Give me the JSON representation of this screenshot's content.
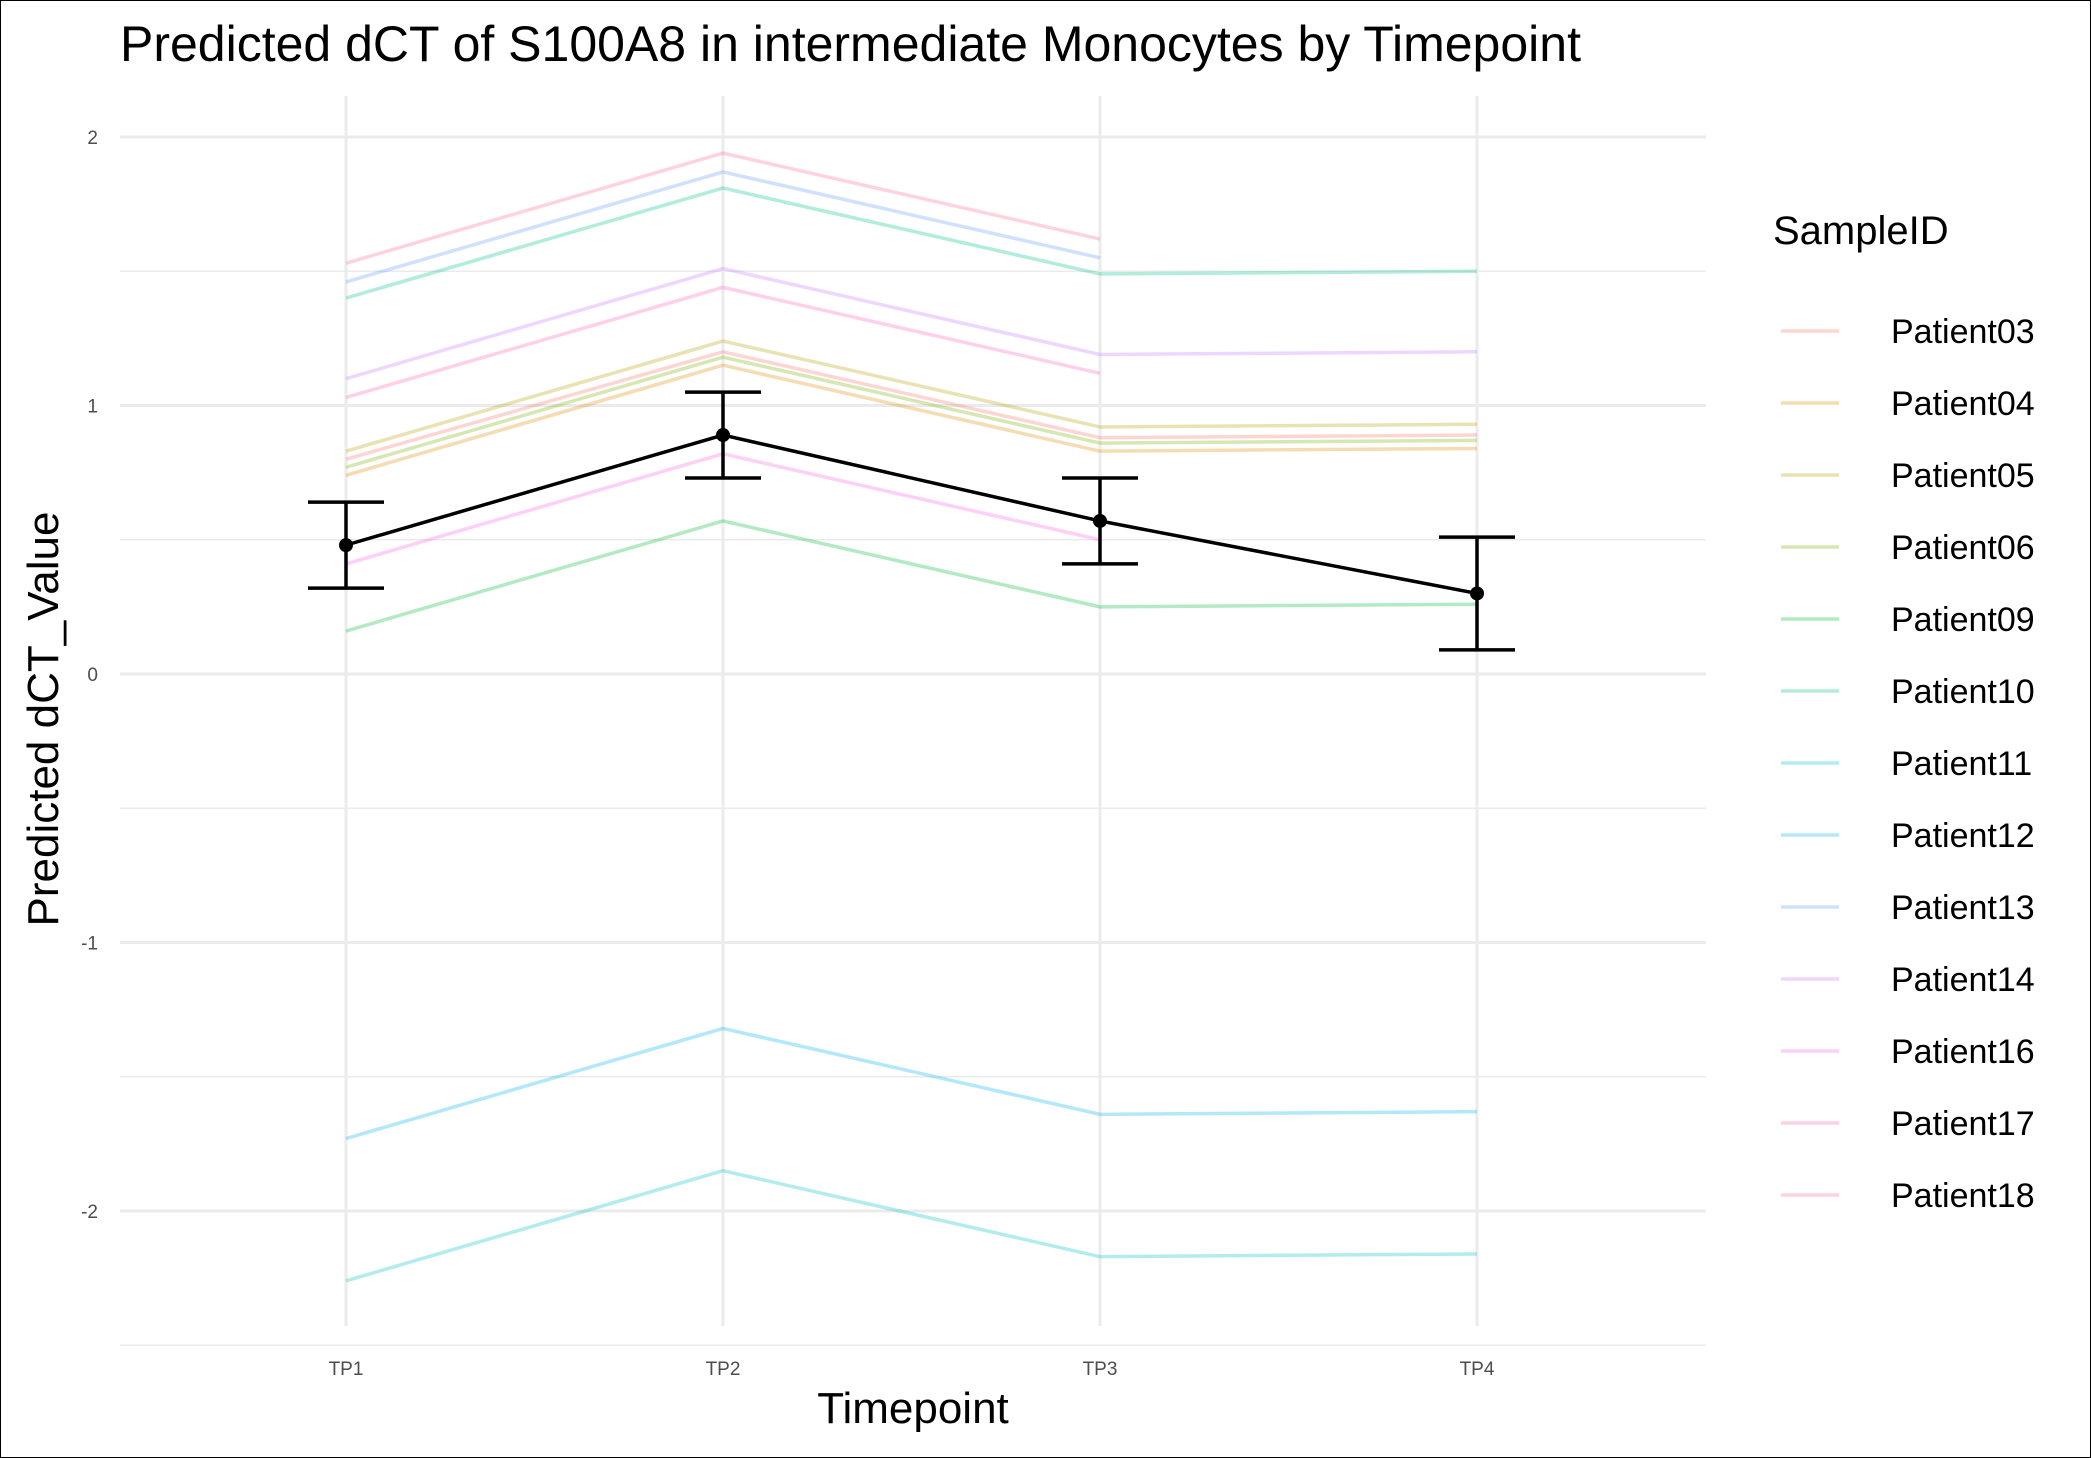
{
  "chart_data": {
    "type": "line",
    "title": "Predicted dCT of  S100A8 in  intermediate  Monocytes by Timepoint",
    "xlabel": "Timepoint",
    "ylabel": "Predicted dCT_Value",
    "categories": [
      "TP1",
      "TP2",
      "TP3",
      "TP4"
    ],
    "ylim": [
      -2.5,
      2.15
    ],
    "yticks": [
      -2,
      -1,
      0,
      1,
      2
    ],
    "ytick_labels": [
      "-2",
      "-1",
      "0",
      "1",
      "2"
    ],
    "grid": true,
    "legend": {
      "title": "SampleID",
      "position": "right"
    },
    "series": [
      {
        "name": "Patient03",
        "color": "#F8766D",
        "values": [
          0.8,
          1.2,
          0.88,
          0.89
        ]
      },
      {
        "name": "Patient04",
        "color": "#DE8C00",
        "values": [
          0.74,
          1.15,
          0.83,
          0.84
        ]
      },
      {
        "name": "Patient05",
        "color": "#B79F00",
        "values": [
          0.83,
          1.24,
          0.92,
          0.93
        ]
      },
      {
        "name": "Patient06",
        "color": "#7CAE00",
        "values": [
          0.77,
          1.18,
          0.86,
          0.87
        ]
      },
      {
        "name": "Patient09",
        "color": "#00BA38",
        "values": [
          0.16,
          0.57,
          0.25,
          0.26
        ]
      },
      {
        "name": "Patient10",
        "color": "#00C08B",
        "values": [
          1.4,
          1.81,
          1.49,
          1.5
        ]
      },
      {
        "name": "Patient11",
        "color": "#00BFC4",
        "values": [
          -2.26,
          -1.85,
          -2.17,
          -2.16
        ]
      },
      {
        "name": "Patient12",
        "color": "#00B4F0",
        "values": [
          -1.73,
          -1.32,
          -1.64,
          -1.63
        ]
      },
      {
        "name": "Patient13",
        "color": "#619CFF",
        "values": [
          1.46,
          1.87,
          1.55,
          null
        ]
      },
      {
        "name": "Patient14",
        "color": "#C77CFF",
        "values": [
          1.1,
          1.51,
          1.19,
          1.2
        ]
      },
      {
        "name": "Patient16",
        "color": "#F564E3",
        "values": [
          0.41,
          0.82,
          0.5,
          null
        ]
      },
      {
        "name": "Patient17",
        "color": "#FF64B0",
        "values": [
          1.03,
          1.44,
          1.12,
          null
        ]
      },
      {
        "name": "Patient18",
        "color": "#FF6C91",
        "values": [
          1.53,
          1.94,
          1.62,
          null
        ]
      }
    ],
    "mean": {
      "color": "#000000",
      "values": [
        0.48,
        0.89,
        0.57,
        0.3
      ],
      "lower": [
        0.32,
        0.73,
        0.41,
        0.09
      ],
      "upper": [
        0.64,
        1.05,
        0.73,
        0.51
      ]
    }
  }
}
